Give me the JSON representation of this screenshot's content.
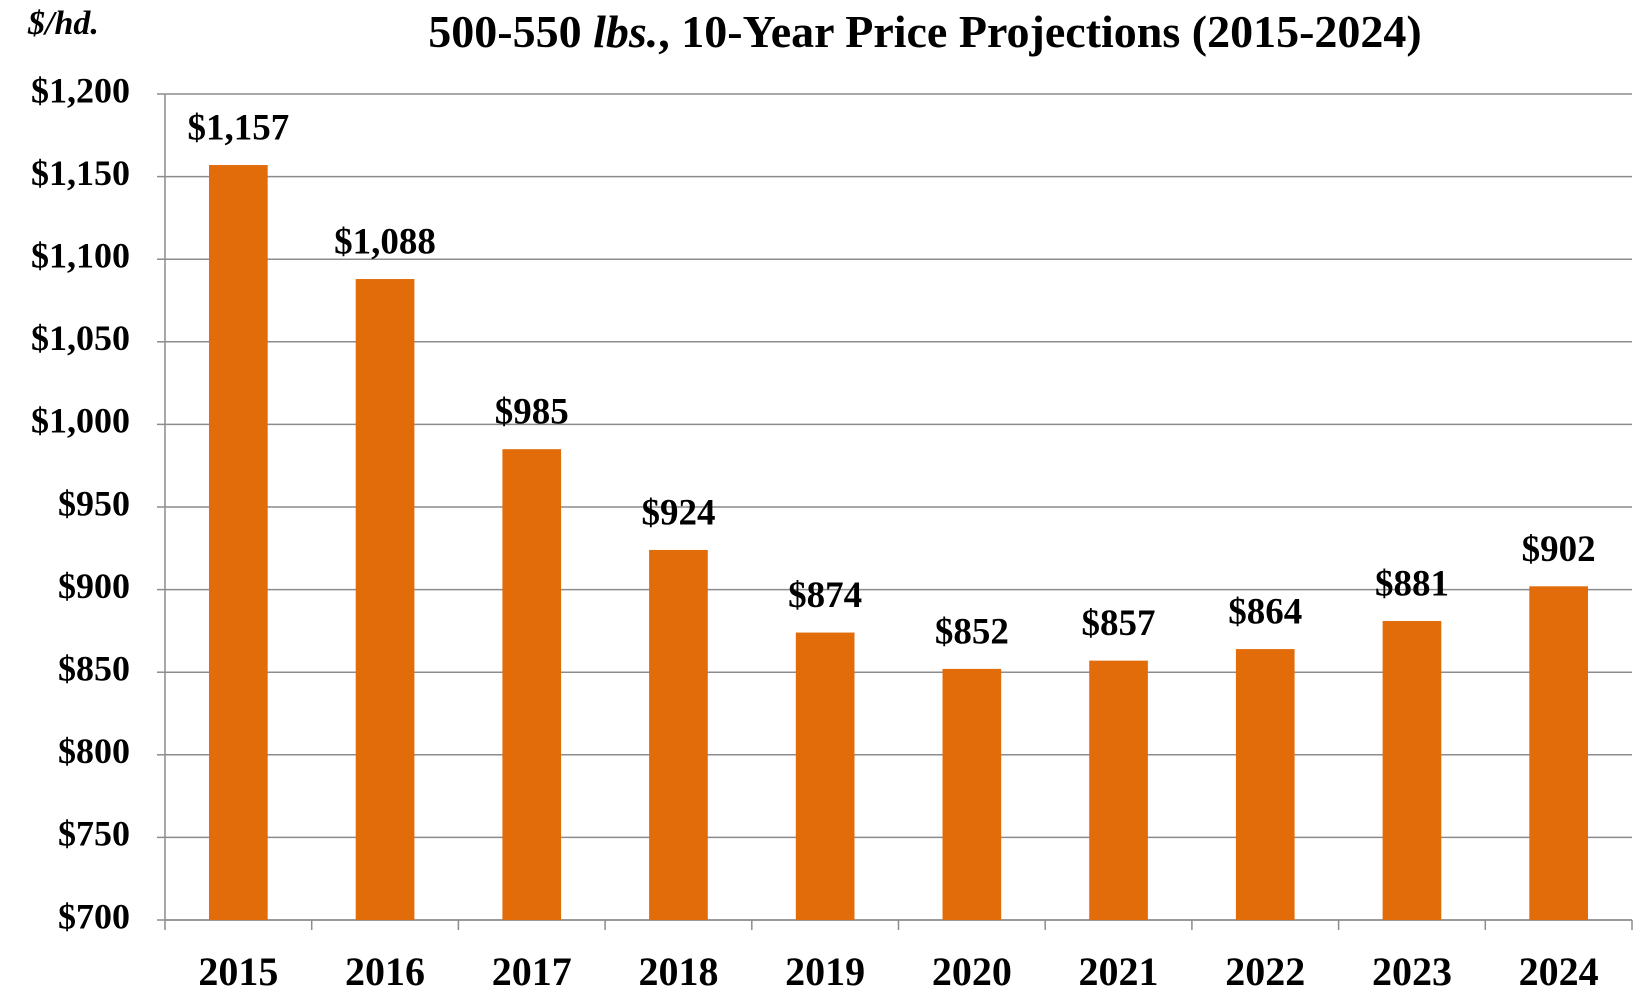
{
  "chart_data": {
    "type": "bar",
    "title": [
      {
        "text": "500-550 "
      },
      {
        "text": "lbs.",
        "italic": true
      },
      {
        "text": ", 10-Year Price Projections (2015-2024)"
      }
    ],
    "y_axis_label": "$/hd.",
    "categories": [
      "2015",
      "2016",
      "2017",
      "2018",
      "2019",
      "2020",
      "2021",
      "2022",
      "2023",
      "2024"
    ],
    "values": [
      1157,
      1088,
      985,
      924,
      874,
      852,
      857,
      864,
      881,
      902
    ],
    "value_labels": [
      "$1,157",
      "$1,088",
      "$985",
      "$924",
      "$874",
      "$852",
      "$857",
      "$864",
      "$881",
      "$902"
    ],
    "color": "#e36c0a",
    "ylim": [
      700,
      1200
    ],
    "yticks": [
      {
        "value": 700,
        "label": "$700"
      },
      {
        "value": 750,
        "label": "$750"
      },
      {
        "value": 800,
        "label": "$800"
      },
      {
        "value": 850,
        "label": "$850"
      },
      {
        "value": 900,
        "label": "$900"
      },
      {
        "value": 950,
        "label": "$950"
      },
      {
        "value": 1000,
        "label": "$1,000"
      },
      {
        "value": 1050,
        "label": "$1,050"
      },
      {
        "value": 1100,
        "label": "$1,100"
      },
      {
        "value": 1150,
        "label": "$1,150"
      },
      {
        "value": 1200,
        "label": "$1,200"
      }
    ],
    "grid": true
  }
}
